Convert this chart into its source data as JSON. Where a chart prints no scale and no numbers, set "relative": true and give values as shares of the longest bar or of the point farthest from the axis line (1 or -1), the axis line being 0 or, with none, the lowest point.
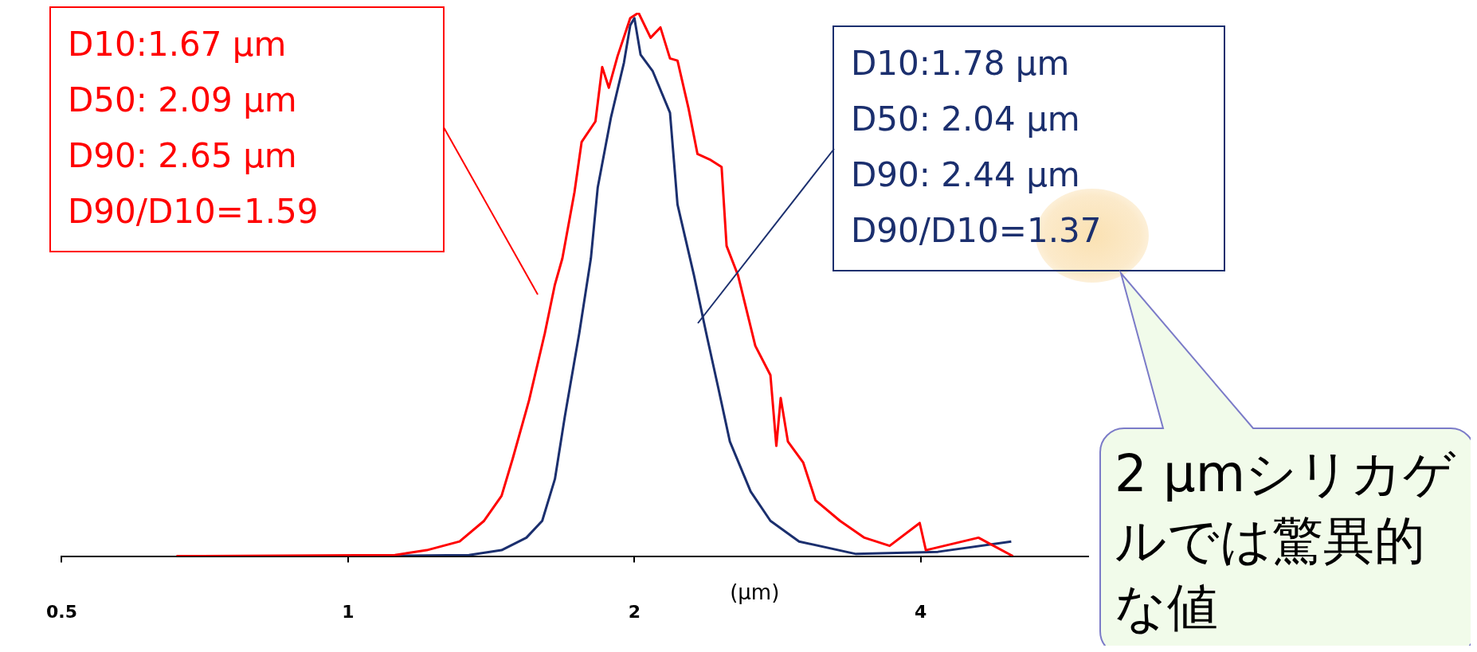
{
  "chart_data": {
    "type": "line",
    "relative": true,
    "log": "x",
    "marker": "none",
    "xlabel": "(μm)",
    "xlim": [
      0.5,
      6
    ],
    "xticks": [
      0.5,
      1,
      2,
      4
    ],
    "series": [
      {
        "color": "#ff0000",
        "x": [
          0.66,
          1.12,
          1.21,
          1.31,
          1.39,
          1.45,
          1.49,
          1.55,
          1.61,
          1.65,
          1.68,
          1.73,
          1.76,
          1.82,
          1.85,
          1.88,
          1.92,
          1.98,
          2.02,
          2.08,
          2.13,
          2.18,
          2.22,
          2.28,
          2.33,
          2.4,
          2.47,
          2.5,
          2.57,
          2.68,
          2.78,
          2.82,
          2.85,
          2.9,
          3.01,
          3.1,
          3.29,
          3.49,
          3.71,
          3.99,
          4.05,
          4.6,
          5.0
        ],
        "values": [
          0,
          0.002,
          0.011,
          0.027,
          0.065,
          0.111,
          0.18,
          0.287,
          0.41,
          0.5,
          0.548,
          0.67,
          0.762,
          0.8,
          0.9,
          0.862,
          0.92,
          0.99,
          1,
          0.954,
          0.973,
          0.916,
          0.912,
          0.824,
          0.74,
          0.73,
          0.716,
          0.571,
          0.517,
          0.387,
          0.333,
          0.203,
          0.291,
          0.211,
          0.172,
          0.103,
          0.065,
          0.034,
          0.019,
          0.061,
          0.011,
          0.034,
          0
        ]
      },
      {
        "color": "#1b2f6e",
        "x": [
          1.0,
          1.34,
          1.45,
          1.54,
          1.6,
          1.65,
          1.69,
          1.75,
          1.8,
          1.83,
          1.89,
          1.95,
          1.98,
          2.0,
          2.03,
          2.09,
          2.18,
          2.22,
          2.31,
          2.38,
          2.45,
          2.52,
          2.65,
          2.78,
          2.98,
          3.42,
          4.17,
          4.98
        ],
        "values": [
          0,
          0.002,
          0.011,
          0.034,
          0.065,
          0.142,
          0.257,
          0.41,
          0.548,
          0.678,
          0.808,
          0.908,
          0.977,
          0.99,
          0.923,
          0.893,
          0.816,
          0.647,
          0.517,
          0.41,
          0.31,
          0.211,
          0.119,
          0.065,
          0.027,
          0.004,
          0.008,
          0.027
        ]
      }
    ],
    "annotations": [
      "D10:1.67 μm\nD50: 2.09 μm\nD90: 2.65 μm\nD90/D10=1.59",
      "D10:1.78 μm\nD50: 2.04 μm\nD90: 2.44 μm\nD90/D10=1.37",
      "2 μmシリカゲルでは驚異的な値"
    ]
  }
}
